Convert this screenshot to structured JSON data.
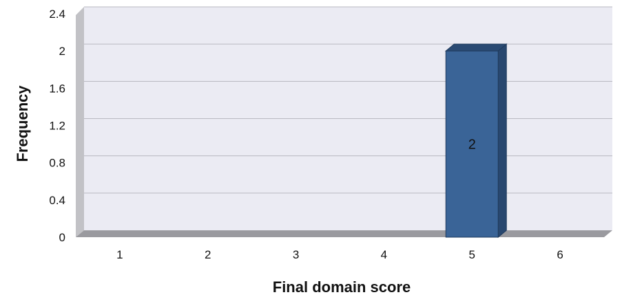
{
  "chart_data": {
    "type": "bar",
    "title": "",
    "xlabel": "Final domain score",
    "ylabel": "Frequency",
    "categories": [
      "1",
      "2",
      "3",
      "4",
      "5",
      "6"
    ],
    "values": [
      0,
      0,
      0,
      0,
      2,
      0
    ],
    "data_labels": [
      "",
      "",
      "",
      "",
      "2",
      ""
    ],
    "yticks": [
      "0",
      "0.4",
      "0.8",
      "1.2",
      "1.6",
      "2",
      "2.4"
    ],
    "ylim": [
      0,
      2.4
    ],
    "grid": true,
    "legend": "none",
    "colors": {
      "bar": "#3a6497",
      "bar_top": "#2a4a73",
      "bar_side": "#28476f",
      "plot_bg": "#ebebf3",
      "wall_side": "#c2c2c6",
      "floor": "#9a9a9f",
      "grid": "#b8b8c0"
    }
  }
}
